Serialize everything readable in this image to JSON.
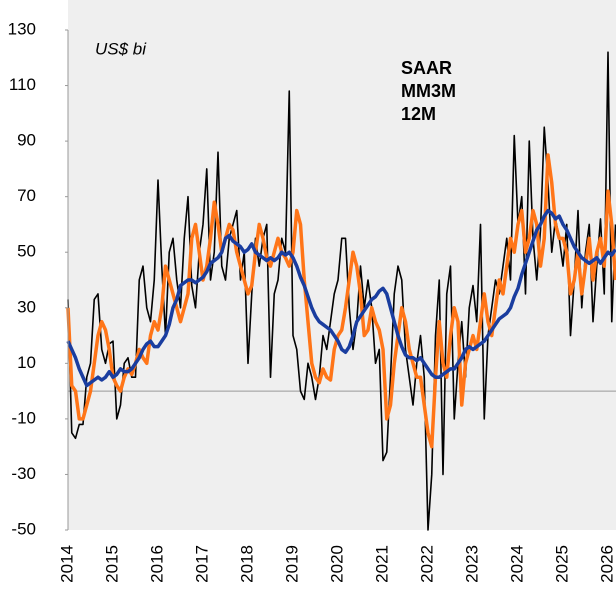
{
  "chart_data": {
    "type": "line",
    "unit_label": "US$ bi",
    "categories": [
      "2014",
      null,
      null,
      null,
      null,
      null,
      null,
      null,
      null,
      null,
      null,
      null,
      "2015",
      null,
      null,
      null,
      null,
      null,
      null,
      null,
      null,
      null,
      null,
      null,
      "2016",
      null,
      null,
      null,
      null,
      null,
      null,
      null,
      null,
      null,
      null,
      null,
      "2017",
      null,
      null,
      null,
      null,
      null,
      null,
      null,
      null,
      null,
      null,
      null,
      "2018",
      null,
      null,
      null,
      null,
      null,
      null,
      null,
      null,
      null,
      null,
      null,
      "2019",
      null,
      null,
      null,
      null,
      null,
      null,
      null,
      null,
      null,
      null,
      null,
      "2020",
      null,
      null,
      null,
      null,
      null,
      null,
      null,
      null,
      null,
      null,
      null,
      "2021",
      null,
      null,
      null,
      null,
      null,
      null,
      null,
      null,
      null,
      null,
      null,
      "2022",
      null,
      null,
      null,
      null,
      null,
      null,
      null,
      null,
      null,
      null,
      null,
      "2023",
      null,
      null,
      null,
      null,
      null,
      null,
      null,
      null,
      null,
      null,
      null,
      "2024",
      null,
      null,
      null,
      null,
      null,
      null,
      null,
      null,
      null,
      null,
      null,
      "2025",
      null,
      null,
      null,
      null,
      null,
      null,
      null,
      null,
      null,
      null,
      null,
      "2026",
      null,
      null
    ],
    "series": [
      {
        "name": "SAAR",
        "color": "#000000",
        "width": 1.6,
        "values": [
          33,
          -15,
          -17,
          -12,
          -12,
          5,
          10,
          33,
          35,
          15,
          10,
          17,
          18,
          -10,
          -5,
          10,
          12,
          5,
          5,
          40,
          45,
          30,
          25,
          40,
          76,
          45,
          20,
          50,
          55,
          40,
          30,
          55,
          70,
          38,
          30,
          50,
          60,
          80,
          40,
          50,
          86,
          45,
          40,
          55,
          60,
          65,
          40,
          50,
          10,
          35,
          55,
          45,
          55,
          60,
          5,
          35,
          40,
          55,
          50,
          108,
          20,
          15,
          0,
          -3,
          10,
          5,
          -3,
          5,
          20,
          15,
          25,
          35,
          40,
          55,
          55,
          30,
          15,
          25,
          45,
          30,
          40,
          30,
          10,
          15,
          -25,
          -22,
          5,
          35,
          45,
          40,
          15,
          5,
          -5,
          10,
          20,
          5,
          -50,
          -30,
          20,
          40,
          -30,
          35,
          45,
          -10,
          10,
          25,
          5,
          30,
          38,
          25,
          60,
          -10,
          20,
          30,
          40,
          35,
          45,
          55,
          40,
          92,
          60,
          70,
          35,
          90,
          55,
          40,
          58,
          95,
          75,
          50,
          62,
          55,
          45,
          60,
          20,
          40,
          65,
          30,
          50,
          60,
          25,
          45,
          62,
          35,
          122,
          25,
          60
        ]
      },
      {
        "name": "MM3M",
        "color": "#ff7518",
        "width": 3.5,
        "values": [
          30,
          2,
          0,
          -10,
          -10,
          -5,
          0,
          10,
          20,
          25,
          22,
          15,
          5,
          2,
          0,
          5,
          8,
          6,
          10,
          15,
          12,
          10,
          20,
          25,
          22,
          30,
          45,
          40,
          35,
          30,
          25,
          30,
          35,
          55,
          60,
          50,
          40,
          45,
          55,
          68,
          60,
          50,
          55,
          60,
          58,
          50,
          45,
          40,
          35,
          38,
          50,
          60,
          55,
          48,
          45,
          50,
          55,
          50,
          48,
          45,
          50,
          65,
          60,
          40,
          25,
          10,
          5,
          3,
          8,
          5,
          4,
          15,
          20,
          22,
          30,
          40,
          50,
          45,
          35,
          20,
          22,
          30,
          25,
          22,
          15,
          -10,
          -5,
          10,
          20,
          30,
          25,
          15,
          10,
          5,
          5,
          -5,
          -15,
          -20,
          5,
          25,
          10,
          5,
          20,
          30,
          25,
          -5,
          10,
          15,
          20,
          15,
          25,
          35,
          25,
          20,
          30,
          40,
          35,
          45,
          55,
          50,
          60,
          65,
          50,
          55,
          65,
          60,
          45,
          55,
          85,
          75,
          60,
          55,
          55,
          50,
          35,
          40,
          50,
          35,
          45,
          55,
          40,
          50,
          55,
          45,
          72,
          60,
          40
        ]
      },
      {
        "name": "12M",
        "color": "#1a3d9f",
        "width": 3.5,
        "values": [
          18,
          15,
          12,
          8,
          5,
          2,
          3,
          4,
          5,
          4,
          5,
          7,
          5,
          6,
          8,
          7,
          7,
          8,
          10,
          12,
          15,
          17,
          18,
          16,
          16,
          18,
          20,
          24,
          30,
          33,
          38,
          39,
          40,
          40,
          39,
          40,
          41,
          43,
          46,
          47,
          48,
          50,
          55,
          56,
          54,
          53,
          52,
          50,
          51,
          53,
          50,
          49,
          48,
          47,
          48,
          47,
          48,
          50,
          49,
          50,
          48,
          45,
          41,
          38,
          34,
          30,
          27,
          25,
          24,
          23,
          22,
          20,
          18,
          15,
          14,
          16,
          20,
          25,
          27,
          29,
          31,
          33,
          34,
          36,
          37,
          35,
          30,
          25,
          20,
          16,
          13,
          12,
          12,
          11,
          12,
          10,
          8,
          6,
          5,
          5,
          6,
          7,
          8,
          8,
          10,
          12,
          15,
          16,
          15,
          16,
          17,
          18,
          20,
          22,
          24,
          26,
          27,
          28,
          30,
          34,
          37,
          42,
          46,
          50,
          54,
          58,
          60,
          63,
          65,
          64,
          62,
          63,
          60,
          58,
          55,
          52,
          50,
          48,
          47,
          46,
          47,
          48,
          46,
          48,
          50,
          49,
          51
        ]
      }
    ],
    "ylim": [
      -50,
      130
    ],
    "yticks": [
      -50,
      -30,
      -10,
      10,
      30,
      50,
      70,
      90,
      110,
      130
    ],
    "grid": false
  }
}
